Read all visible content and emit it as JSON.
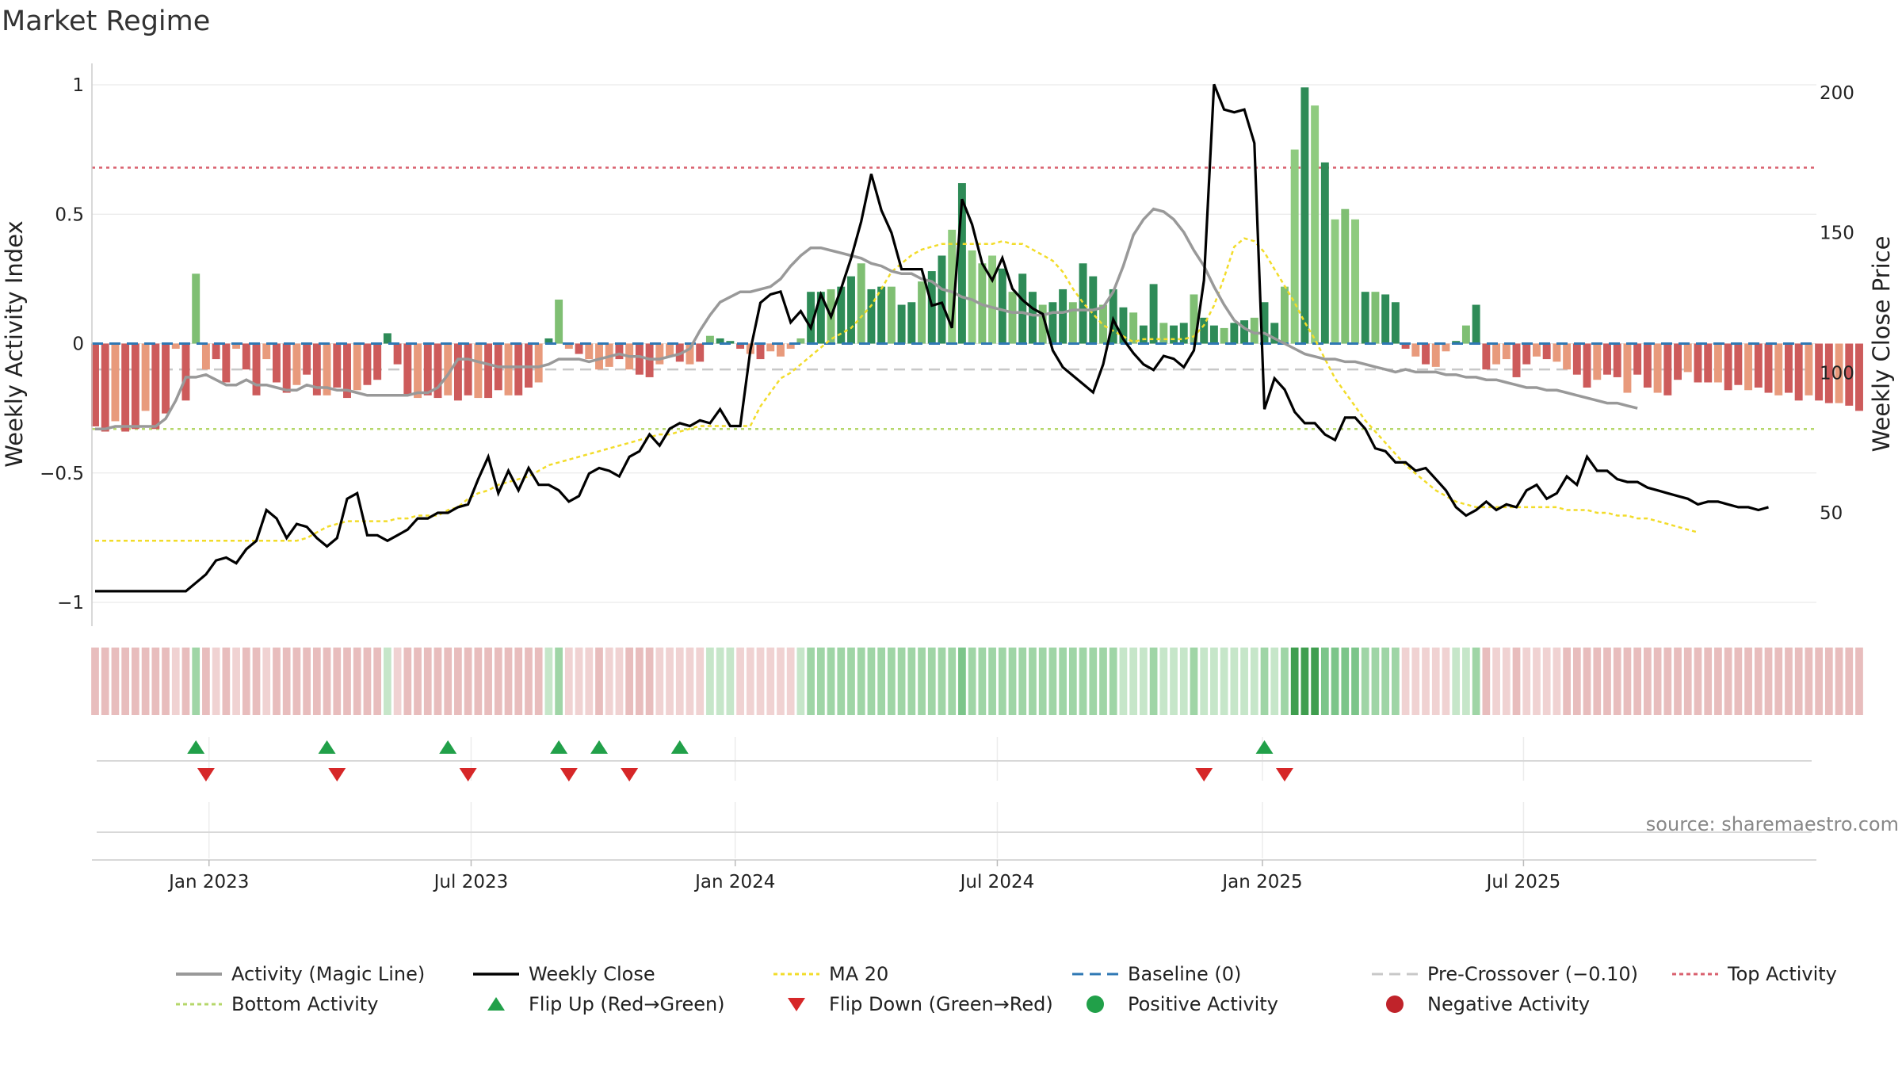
{
  "chart_data": {
    "type": "bar",
    "title": "Market Regime",
    "ylabel_left": "Weekly Activity Index",
    "ylabel_right": "Weekly Close Price",
    "source_text": "source: sharemaestro.com",
    "ylim_left": [
      -1,
      1
    ],
    "yticks_left": [
      {
        "value": 1,
        "label": "1"
      },
      {
        "value": 0.5,
        "label": "0.5"
      },
      {
        "value": 0,
        "label": "0"
      },
      {
        "value": -0.5,
        "label": "−0.5"
      },
      {
        "value": -1,
        "label": "−1"
      }
    ],
    "yticks_right": [
      {
        "value": 200,
        "label": "200"
      },
      {
        "value": 150,
        "label": "150"
      },
      {
        "value": 100,
        "label": "100"
      },
      {
        "value": 50,
        "label": "50"
      }
    ],
    "x_ticks": [
      "Jan 2023",
      "Jul 2023",
      "Jan 2024",
      "Jul 2024",
      "Jan 2025",
      "Jul 2025"
    ],
    "x_tick_weeks": [
      11.3,
      37.3,
      63.5,
      89.5,
      115.8,
      141.7
    ],
    "reference_lines": {
      "baseline": 0,
      "pre_crossover": -0.1,
      "top_activity": 0.68,
      "bottom_activity": -0.33
    },
    "activity": [
      -0.33,
      -0.33,
      -0.32,
      -0.32,
      -0.32,
      -0.32,
      -0.32,
      -0.29,
      -0.22,
      -0.13,
      -0.13,
      -0.12,
      -0.14,
      -0.16,
      -0.16,
      -0.14,
      -0.16,
      -0.16,
      -0.17,
      -0.18,
      -0.18,
      -0.16,
      -0.17,
      -0.17,
      -0.18,
      -0.18,
      -0.19,
      -0.2,
      -0.2,
      -0.2,
      -0.2,
      -0.2,
      -0.19,
      -0.19,
      -0.17,
      -0.12,
      -0.06,
      -0.06,
      -0.07,
      -0.08,
      -0.09,
      -0.09,
      -0.09,
      -0.09,
      -0.09,
      -0.08,
      -0.06,
      -0.06,
      -0.06,
      -0.07,
      -0.06,
      -0.05,
      -0.04,
      -0.05,
      -0.05,
      -0.06,
      -0.06,
      -0.05,
      -0.04,
      -0.02,
      0.05,
      0.11,
      0.16,
      0.18,
      0.2,
      0.2,
      0.21,
      0.22,
      0.25,
      0.3,
      0.34,
      0.37,
      0.37,
      0.36,
      0.35,
      0.34,
      0.33,
      0.31,
      0.3,
      0.28,
      0.27,
      0.27,
      0.25,
      0.24,
      0.21,
      0.2,
      0.18,
      0.17,
      0.15,
      0.14,
      0.13,
      0.12,
      0.12,
      0.11,
      0.11,
      0.12,
      0.12,
      0.13,
      0.13,
      0.13,
      0.14,
      0.2,
      0.3,
      0.42,
      0.48,
      0.52,
      0.51,
      0.48,
      0.43,
      0.36,
      0.3,
      0.22,
      0.15,
      0.09,
      0.06,
      0.04,
      0.04,
      0.02,
      0.0,
      -0.02,
      -0.04,
      -0.05,
      -0.06,
      -0.06,
      -0.07,
      -0.07,
      -0.08,
      -0.09,
      -0.1,
      -0.11,
      -0.1,
      -0.11,
      -0.11,
      -0.11,
      -0.12,
      -0.12,
      -0.13,
      -0.13,
      -0.14,
      -0.14,
      -0.15,
      -0.16,
      -0.17,
      -0.17,
      -0.18,
      -0.18,
      -0.19,
      -0.2,
      -0.21,
      -0.22,
      -0.23,
      -0.23,
      -0.24,
      -0.25
    ],
    "bars": [
      -0.32,
      -0.34,
      -0.3,
      -0.34,
      -0.33,
      -0.26,
      -0.33,
      -0.27,
      -0.02,
      -0.22,
      0.27,
      -0.1,
      -0.06,
      -0.15,
      -0.02,
      -0.1,
      -0.2,
      -0.06,
      -0.15,
      -0.19,
      -0.16,
      -0.12,
      -0.2,
      -0.2,
      -0.17,
      -0.21,
      -0.18,
      -0.16,
      -0.14,
      0.04,
      -0.08,
      -0.2,
      -0.21,
      -0.2,
      -0.21,
      -0.2,
      -0.22,
      -0.2,
      -0.21,
      -0.21,
      -0.18,
      -0.2,
      -0.2,
      -0.17,
      -0.15,
      0.02,
      0.17,
      -0.02,
      -0.04,
      -0.06,
      -0.1,
      -0.09,
      -0.06,
      -0.1,
      -0.12,
      -0.13,
      -0.08,
      -0.05,
      -0.07,
      -0.08,
      -0.07,
      0.03,
      0.02,
      0.01,
      -0.02,
      -0.04,
      -0.06,
      -0.03,
      -0.05,
      -0.02,
      0.02,
      0.2,
      0.2,
      0.21,
      0.22,
      0.26,
      0.31,
      0.21,
      0.22,
      0.22,
      0.15,
      0.16,
      0.24,
      0.28,
      0.34,
      0.44,
      0.62,
      0.36,
      0.31,
      0.34,
      0.29,
      0.2,
      0.27,
      0.2,
      0.15,
      0.16,
      0.21,
      0.16,
      0.31,
      0.26,
      0.15,
      0.21,
      0.14,
      0.12,
      0.07,
      0.23,
      0.08,
      0.07,
      0.08,
      0.19,
      0.1,
      0.07,
      0.06,
      0.08,
      0.09,
      0.1,
      0.16,
      0.08,
      0.22,
      0.75,
      0.99,
      0.92,
      0.7,
      0.48,
      0.52,
      0.48,
      0.2,
      0.2,
      0.19,
      0.16,
      -0.02,
      -0.05,
      -0.08,
      -0.09,
      -0.03,
      0.01,
      0.07,
      0.15,
      -0.1,
      -0.08,
      -0.06,
      -0.13,
      -0.08,
      -0.05,
      -0.06,
      -0.07,
      -0.1,
      -0.12,
      -0.17,
      -0.14,
      -0.12,
      -0.13,
      -0.19,
      -0.12,
      -0.17,
      -0.19,
      -0.2,
      -0.14,
      -0.11,
      -0.15,
      -0.15,
      -0.15,
      -0.18,
      -0.16,
      -0.18,
      -0.17,
      -0.19,
      -0.2,
      -0.19,
      -0.22,
      -0.2,
      -0.22,
      -0.23,
      -0.23,
      -0.24,
      -0.26
    ],
    "weekly_close": [
      22,
      22,
      22,
      22,
      22,
      22,
      22,
      22,
      22,
      22,
      25,
      28,
      33,
      34,
      32,
      37,
      40,
      51,
      48,
      41,
      46,
      45,
      41,
      38,
      41,
      55,
      57,
      42,
      42,
      40,
      42,
      44,
      48,
      48,
      50,
      50,
      52,
      53,
      62,
      70,
      57,
      65,
      58,
      66,
      60,
      60,
      58,
      54,
      56,
      64,
      66,
      65,
      63,
      70,
      72,
      78,
      74,
      80,
      82,
      81,
      83,
      82,
      87,
      81,
      81,
      108,
      125,
      128,
      129,
      118,
      122,
      116,
      128,
      120,
      130,
      141,
      154,
      171,
      158,
      150,
      137,
      137,
      137,
      124,
      125,
      116,
      162,
      153,
      139,
      133,
      141,
      130,
      126,
      123,
      121,
      108,
      102,
      99,
      96,
      93,
      103,
      119,
      112,
      107,
      103,
      101,
      106,
      105,
      102,
      108,
      133,
      203,
      194,
      193,
      194,
      182,
      87,
      98,
      94,
      86,
      82,
      82,
      78,
      76,
      84,
      84,
      80,
      73,
      72,
      68,
      68,
      65,
      66,
      62,
      58,
      52,
      49,
      51,
      54,
      51,
      53,
      52,
      58,
      60,
      55,
      57,
      63,
      60,
      70,
      65,
      65,
      62,
      61,
      61,
      59,
      58,
      57,
      56,
      55,
      53,
      54,
      54,
      53,
      52,
      52,
      51,
      52
    ],
    "ma20": [
      40,
      40,
      40,
      40,
      40,
      40,
      40,
      40,
      40,
      40,
      40,
      40,
      40,
      40,
      40,
      40,
      40,
      40,
      40,
      40,
      40,
      41,
      43,
      45,
      46,
      47,
      47,
      47,
      47,
      47,
      48,
      48,
      49,
      49,
      49,
      51,
      52,
      55,
      57,
      58,
      60,
      61,
      62,
      63,
      65,
      67,
      68,
      69,
      70,
      71,
      72,
      73,
      74,
      75,
      76,
      77,
      78,
      78,
      79,
      80,
      81,
      81,
      81,
      81,
      81,
      81,
      88,
      93,
      98,
      100,
      103,
      106,
      109,
      112,
      114,
      116,
      120,
      124,
      130,
      136,
      139,
      142,
      144,
      145,
      146,
      146,
      146,
      146,
      146,
      146,
      147,
      146,
      146,
      144,
      142,
      140,
      136,
      130,
      125,
      121,
      117,
      115,
      113,
      111,
      112,
      112,
      112,
      112,
      112,
      113,
      117,
      124,
      134,
      145,
      148,
      147,
      143,
      137,
      131,
      125,
      118,
      112,
      105,
      98,
      93,
      88,
      83,
      79,
      75,
      71,
      67,
      64,
      61,
      58,
      56,
      54,
      53,
      52,
      52,
      52,
      52,
      52,
      52,
      52,
      52,
      52,
      51,
      51,
      51,
      50,
      50,
      49,
      49,
      48,
      48,
      47,
      46,
      45,
      44,
      43
    ],
    "flip_up_weeks": [
      10,
      23,
      35,
      46,
      50,
      58,
      116
    ],
    "flip_down_weeks": [
      11,
      24,
      37,
      47,
      53,
      110,
      118
    ],
    "legend": [
      {
        "label": "Activity (Magic Line)",
        "color": "#999999"
      },
      {
        "label": "Weekly Close",
        "color": "#000000"
      },
      {
        "label": "MA 20",
        "color": "#f2dc2a"
      },
      {
        "label": "Baseline (0)",
        "color": "#2f78b4"
      },
      {
        "label": "Pre-Crossover (−0.10)",
        "color": "#c8c8c8"
      },
      {
        "label": "Top Activity",
        "color": "#d9606e"
      },
      {
        "label": "Bottom Activity",
        "color": "#b5d76a"
      },
      {
        "label": "Flip Up (Red→Green)",
        "color": "#21a049"
      },
      {
        "label": "Flip Down (Green→Red)",
        "color": "#d62728"
      },
      {
        "label": "Positive Activity",
        "color": "#21a049"
      },
      {
        "label": "Negative Activity",
        "color": "#c0232a"
      }
    ]
  }
}
